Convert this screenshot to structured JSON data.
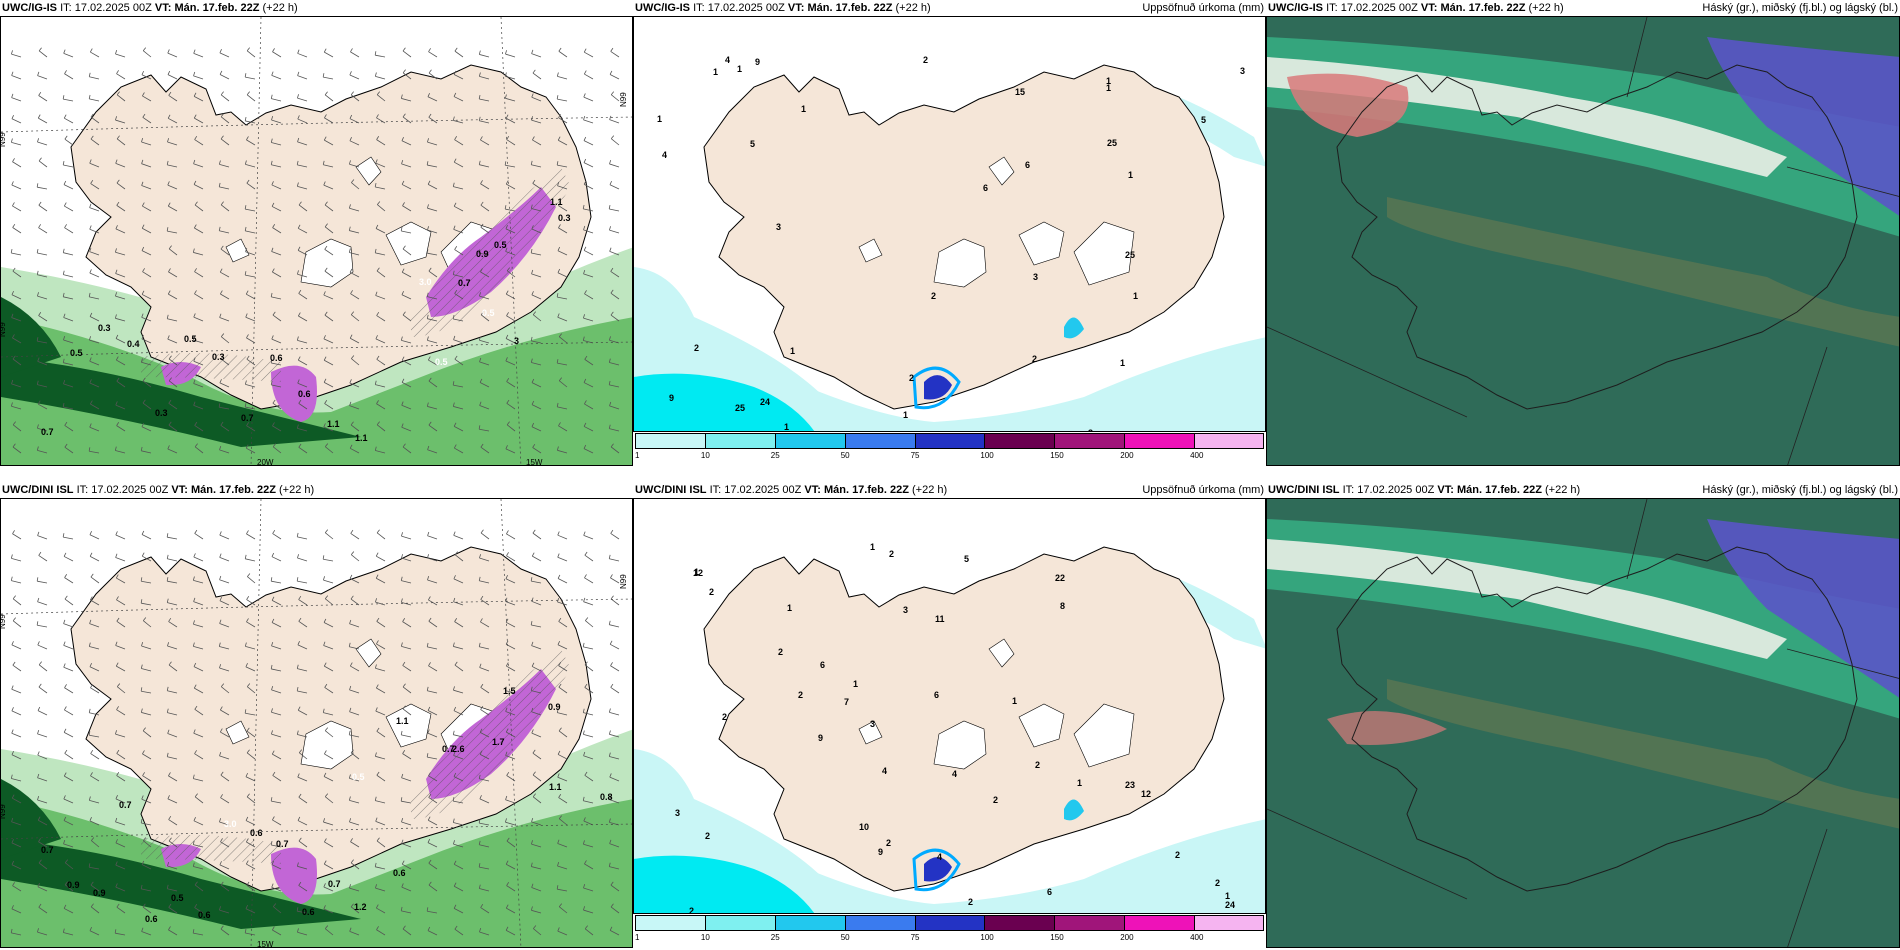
{
  "panels": [
    {
      "id": "p1",
      "title": {
        "model": "UWC/IG-IS",
        "it_label": "IT:",
        "it": "17.02.2025 00Z",
        "vt_label": "VT:",
        "vt": "Mán. 17.feb. 22Z",
        "lead": "(+22 h)"
      },
      "right_title": "",
      "axis_labels": [
        "N99",
        "N99",
        "N99",
        "20W",
        "15W"
      ],
      "values": [
        "0.7",
        "0.5",
        "0.3",
        "0.4",
        "0.3",
        "0.5",
        "0.3",
        "0.7",
        "0.6",
        "0.6",
        "1.1",
        "1.1",
        "0.9",
        "0.7",
        "0.5",
        "0.3",
        "1.1",
        "3.0",
        "0.5",
        "3",
        "0.5"
      ]
    },
    {
      "id": "p2",
      "title": {
        "model": "UWC/IG-IS",
        "it_label": "IT:",
        "it": "17.02.2025 00Z",
        "vt_label": "VT:",
        "vt": "Mán. 17.feb. 22Z",
        "lead": "(+22 h)"
      },
      "right_title": "Uppsöfnuð úrkoma (mm)",
      "values": [
        "1",
        "2",
        "2",
        "1",
        "1",
        "4",
        "3",
        "1",
        "1",
        "3",
        "1",
        "1",
        "6",
        "2",
        "6",
        "4",
        "2",
        "5",
        "1",
        "9",
        "3",
        "1",
        "3",
        "5",
        "1",
        "1",
        "1",
        "9",
        "24",
        "25",
        "25",
        "25",
        "15",
        "2"
      ]
    },
    {
      "id": "p3",
      "title": {
        "model": "UWC/IG-IS",
        "it_label": "IT:",
        "it": "17.02.2025 00Z",
        "vt_label": "VT:",
        "vt": "Mán. 17.feb. 22Z",
        "lead": "(+22 h)"
      },
      "right_title": "Háský (gr.), miðský (fj.bl.) og lágský (bl.)"
    },
    {
      "id": "p4",
      "title": {
        "model": "UWC/DINI ISL",
        "it_label": "IT:",
        "it": "17.02.2025 00Z",
        "vt_label": "VT:",
        "vt": "Mán. 17.feb. 22Z",
        "lead": "(+22 h)"
      },
      "right_title": "",
      "axis_labels": [
        "N99",
        "N99",
        "N99",
        "15W"
      ],
      "values": [
        "0.7",
        "0.9",
        "0.9",
        "0.7",
        "0.6",
        "0.5",
        "0.6",
        "3.0",
        "0.6",
        "0.7",
        "0.6",
        "0.7",
        "1.2",
        "0.7",
        "0.9",
        "1.1",
        "1.7",
        "1.5",
        "2.6",
        "0.5",
        "0.6",
        "0.8",
        "1.1"
      ]
    },
    {
      "id": "p5",
      "title": {
        "model": "UWC/DINI ISL",
        "it_label": "IT:",
        "it": "17.02.2025 00Z",
        "vt_label": "VT:",
        "vt": "Mán. 17.feb. 22Z",
        "lead": "(+22 h)"
      },
      "right_title": "Uppsöfnuð úrkoma (mm)",
      "values": [
        "1",
        "2",
        "2",
        "2",
        "2",
        "2",
        "1",
        "1",
        "2",
        "2",
        "1",
        "5",
        "9",
        "6",
        "2",
        "8",
        "2",
        "12",
        "2",
        "11",
        "7",
        "9",
        "2",
        "10",
        "1",
        "1",
        "6",
        "4",
        "2",
        "3",
        "2",
        "3",
        "1",
        "22",
        "24",
        "23",
        "4",
        "4",
        "6",
        "12",
        "3"
      ]
    },
    {
      "id": "p6",
      "title": {
        "model": "UWC/DINI ISL",
        "it_label": "IT:",
        "it": "17.02.2025 00Z",
        "vt_label": "VT:",
        "vt": "Mán. 17.feb. 22Z",
        "lead": "(+22 h)"
      },
      "right_title": "Háský (gr.), miðský (fj.bl.) og lágský (bl.)"
    }
  ],
  "legend": {
    "ticks": [
      "1",
      "10",
      "25",
      "50",
      "75",
      "100",
      "150",
      "200",
      "400"
    ],
    "colors": [
      "#c8f7f7",
      "#7ff0f0",
      "#22c8ee",
      "#3a7bef",
      "#2333c4",
      "#6a0050",
      "#a0157a",
      "#ee12b8",
      "#f5b4f0"
    ]
  },
  "colors": {
    "land": "#f5e6d8",
    "coast": "#000000",
    "green_light": "#bfe6c0",
    "green_mid": "#6cbf6c",
    "green_dark": "#0d5a25",
    "purple": "#c266d6",
    "cyan_light": "#c9f6f6",
    "cyan": "#00eaf2",
    "cloud_dark": "#2f6b58",
    "cloud_teal": "#38b88a",
    "cloud_purple": "#5a55c8",
    "cloud_red": "#d9797a"
  }
}
